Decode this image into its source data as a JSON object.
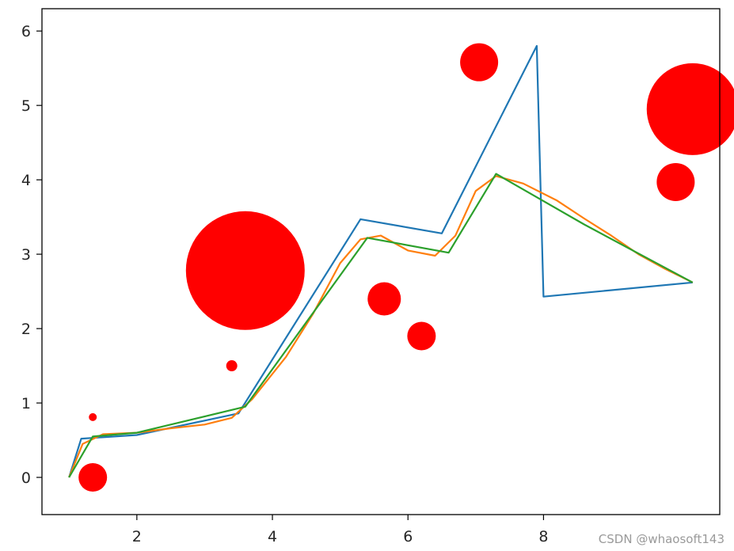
{
  "chart_data": {
    "type": "line",
    "xlim": [
      0.6,
      10.6
    ],
    "ylim": [
      -0.5,
      6.3
    ],
    "xticks": [
      2,
      4,
      6,
      8
    ],
    "yticks": [
      0,
      1,
      2,
      3,
      4,
      5,
      6
    ],
    "xtick_labels": [
      "2",
      "4",
      "6",
      "8"
    ],
    "ytick_labels": [
      "0",
      "1",
      "2",
      "3",
      "4",
      "5",
      "6"
    ],
    "grid": false,
    "series": [
      {
        "type": "line",
        "color": "#1f77b4",
        "x": [
          1.0,
          1.18,
          2.0,
          3.5,
          5.3,
          6.5,
          7.9,
          8.0,
          10.2
        ],
        "y": [
          0.0,
          0.52,
          0.57,
          0.86,
          3.47,
          3.28,
          5.8,
          2.43,
          2.62
        ]
      },
      {
        "type": "line",
        "color": "#ff7f0e",
        "x": [
          1.0,
          1.2,
          1.5,
          2.0,
          2.5,
          3.0,
          3.4,
          3.7,
          4.2,
          4.6,
          5.0,
          5.3,
          5.6,
          6.0,
          6.4,
          6.7,
          7.0,
          7.3,
          7.7,
          8.2,
          8.6,
          9.0,
          9.4,
          9.8,
          10.2
        ],
        "y": [
          0.0,
          0.45,
          0.58,
          0.6,
          0.66,
          0.71,
          0.8,
          1.05,
          1.62,
          2.2,
          2.88,
          3.2,
          3.25,
          3.05,
          2.98,
          3.25,
          3.85,
          4.05,
          3.95,
          3.72,
          3.48,
          3.25,
          3.0,
          2.8,
          2.62
        ]
      },
      {
        "type": "line",
        "color": "#2ca02c",
        "x": [
          1.0,
          1.35,
          2.0,
          3.6,
          5.4,
          6.6,
          7.3,
          8.6,
          10.2
        ],
        "y": [
          0.0,
          0.55,
          0.6,
          0.95,
          3.22,
          3.02,
          4.08,
          3.4,
          2.62
        ]
      },
      {
        "type": "scatter",
        "color": "#ff0000",
        "x": [
          1.35,
          1.35,
          3.4,
          3.6,
          5.65,
          6.2,
          7.05,
          9.95,
          10.2
        ],
        "y": [
          0.0,
          0.81,
          1.5,
          2.78,
          2.4,
          1.9,
          5.58,
          3.97,
          4.95
        ],
        "sizes": [
          18,
          5,
          7,
          75,
          21,
          18,
          24,
          24,
          58
        ]
      }
    ]
  },
  "watermark": "CSDN @whaosoft143"
}
